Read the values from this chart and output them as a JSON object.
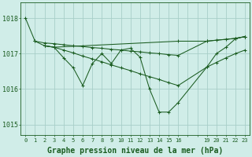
{
  "bg_color": "#d0ede8",
  "grid_color": "#a8cfc8",
  "line_color": "#1a5c20",
  "xlabel": "Graphe pression niveau de la mer (hPa)",
  "ylim": [
    1014.7,
    1018.45
  ],
  "yticks": [
    1015,
    1016,
    1017,
    1018
  ],
  "xtick_labels": [
    "0",
    "1",
    "2",
    "3",
    "4",
    "5",
    "6",
    "7",
    "8",
    "9",
    "10",
    "11",
    "12",
    "13",
    "14",
    "15",
    "16",
    "",
    "",
    "19",
    "20",
    "21",
    "22",
    "23"
  ],
  "xtick_positions": [
    0,
    1,
    2,
    3,
    4,
    5,
    6,
    7,
    8,
    9,
    10,
    11,
    12,
    13,
    14,
    15,
    16,
    17,
    18,
    19,
    20,
    21,
    22,
    23
  ],
  "xlim": [
    -0.5,
    23.5
  ],
  "series": [
    {
      "x": [
        0,
        1,
        2,
        3,
        4,
        5,
        6,
        7,
        8,
        9,
        10,
        11,
        12,
        13,
        14,
        15,
        16,
        19,
        20,
        21,
        22,
        23
      ],
      "y": [
        1018.0,
        1017.35,
        1017.22,
        1017.18,
        1016.88,
        1016.6,
        1016.1,
        1016.72,
        1017.0,
        1016.72,
        1017.1,
        1017.15,
        1016.9,
        1016.0,
        1015.35,
        1015.35,
        1015.62,
        1016.62,
        1017.0,
        1017.18,
        1017.42,
        1017.48
      ]
    },
    {
      "x": [
        1,
        2,
        3,
        4,
        5,
        6,
        7,
        8,
        9,
        10,
        11,
        12,
        13,
        14,
        15,
        16,
        19,
        20,
        21,
        22,
        23
      ],
      "y": [
        1017.35,
        1017.3,
        1017.28,
        1017.25,
        1017.22,
        1017.2,
        1017.17,
        1017.15,
        1017.12,
        1017.1,
        1017.07,
        1017.05,
        1017.02,
        1017.0,
        1016.97,
        1016.95,
        1017.35,
        1017.38,
        1017.4,
        1017.43,
        1017.48
      ]
    },
    {
      "x": [
        2,
        3,
        4,
        5,
        6,
        7,
        8,
        9,
        10,
        11,
        12,
        13,
        14,
        15,
        16,
        19,
        20,
        21,
        22,
        23
      ],
      "y": [
        1017.22,
        1017.18,
        1017.1,
        1017.02,
        1016.93,
        1016.85,
        1016.77,
        1016.68,
        1016.6,
        1016.52,
        1016.43,
        1016.35,
        1016.27,
        1016.18,
        1016.1,
        1016.62,
        1016.75,
        1016.88,
        1017.0,
        1017.1
      ]
    },
    {
      "x": [
        2,
        3,
        16,
        19,
        22,
        23
      ],
      "y": [
        1017.22,
        1017.18,
        1017.35,
        1017.35,
        1017.43,
        1017.48
      ]
    }
  ]
}
